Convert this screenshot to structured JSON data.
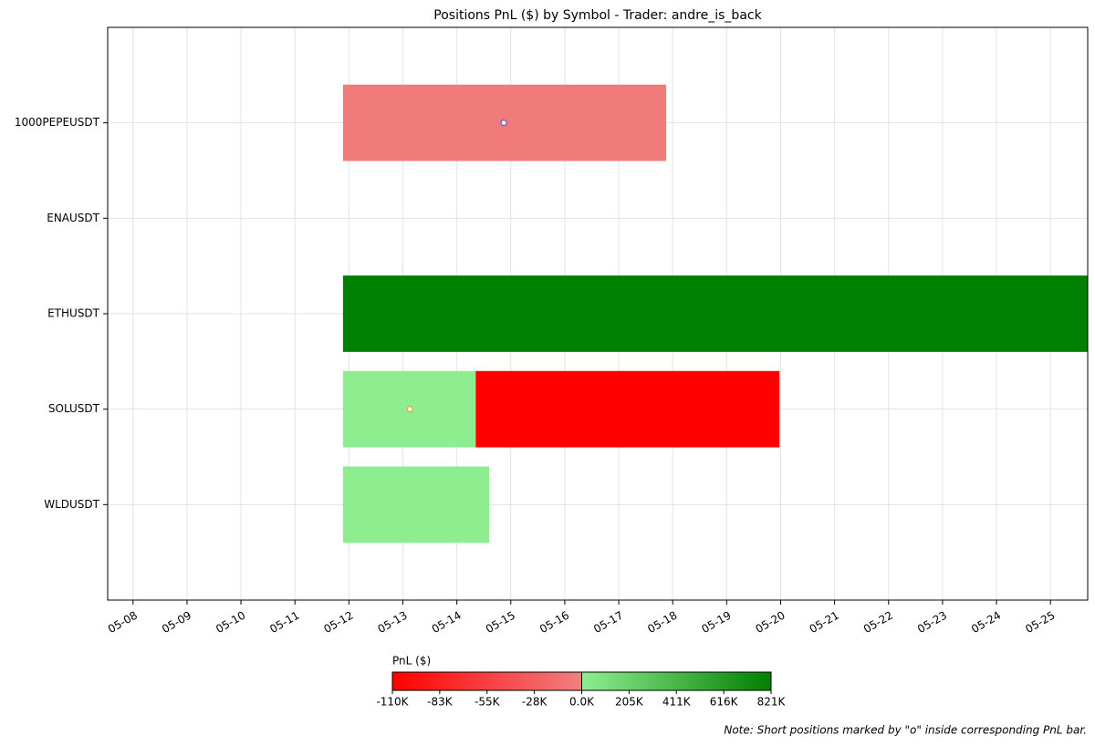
{
  "chart_data": {
    "type": "timeline",
    "title": "Positions PnL ($) by Symbol - Trader: andre_is_back",
    "categories": [
      "1000PEPEUSDT",
      "ENAUSDT",
      "ETHUSDT",
      "SOLUSDT",
      "WLDUSDT"
    ],
    "positions": [
      [
        {
          "start": 11.89,
          "end": 17.88,
          "pnl": -5000,
          "short_at": 14.87,
          "short_color": "#5b5bd6"
        }
      ],
      [],
      [
        {
          "start": 11.89,
          "end": 25.69,
          "pnl": 821000
        }
      ],
      [
        {
          "start": 11.89,
          "end": 14.35,
          "pnl": 10000,
          "short_at": 13.13,
          "short_color": "#f0a030"
        },
        {
          "start": 14.35,
          "end": 19.98,
          "pnl": -110000
        }
      ],
      [
        {
          "start": 11.89,
          "end": 14.6,
          "pnl": 10000
        }
      ]
    ],
    "xlim": [
      7.53,
      25.69
    ],
    "xticks": [
      {
        "value": 8,
        "label": "05-08"
      },
      {
        "value": 9,
        "label": "05-09"
      },
      {
        "value": 10,
        "label": "05-10"
      },
      {
        "value": 11,
        "label": "05-11"
      },
      {
        "value": 12,
        "label": "05-12"
      },
      {
        "value": 13,
        "label": "05-13"
      },
      {
        "value": 14,
        "label": "05-14"
      },
      {
        "value": 15,
        "label": "05-15"
      },
      {
        "value": 16,
        "label": "05-16"
      },
      {
        "value": 17,
        "label": "05-17"
      },
      {
        "value": 18,
        "label": "05-18"
      },
      {
        "value": 19,
        "label": "05-19"
      },
      {
        "value": 20,
        "label": "05-20"
      },
      {
        "value": 21,
        "label": "05-21"
      },
      {
        "value": 22,
        "label": "05-22"
      },
      {
        "value": 23,
        "label": "05-23"
      },
      {
        "value": 24,
        "label": "05-24"
      },
      {
        "value": 25,
        "label": "05-25"
      }
    ],
    "grid": true,
    "colormap": {
      "negative": [
        "#ff0000",
        "#f08080"
      ],
      "positive": [
        "#90ee90",
        "#008000"
      ]
    },
    "colorbar": {
      "label": "PnL ($)",
      "lim": [
        -110000,
        821000
      ],
      "ticks": [
        {
          "value": -110000,
          "label": "-110K"
        },
        {
          "value": -82500,
          "label": "-83K"
        },
        {
          "value": -55000,
          "label": "-55K"
        },
        {
          "value": -27500,
          "label": "-28K"
        },
        {
          "value": 0,
          "label": "0.0K"
        },
        {
          "value": 205250,
          "label": "205K"
        },
        {
          "value": 410500,
          "label": "411K"
        },
        {
          "value": 615750,
          "label": "616K"
        },
        {
          "value": 821000,
          "label": "821K"
        }
      ]
    },
    "note": "Note: Short positions marked by \"o\" inside corresponding PnL bar."
  }
}
